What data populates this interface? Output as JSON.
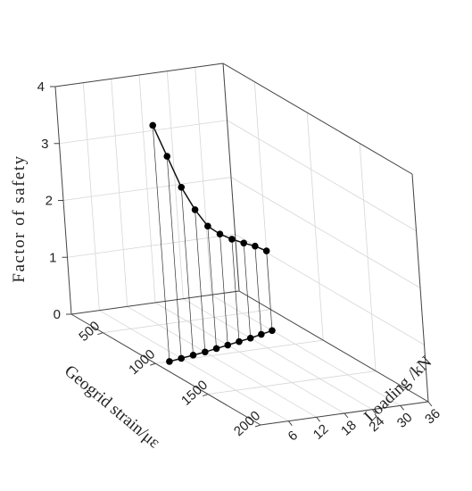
{
  "chart_data": {
    "type": "line3d",
    "title": "",
    "xlabel": "Geogrid strain/με",
    "ylabel": "Loading /kN",
    "zlabel": "Factor of safety",
    "x_ticks": [
      "500",
      "1000",
      "1500",
      "2000"
    ],
    "y_ticks": [
      "6",
      "12",
      "18",
      "24",
      "30",
      "36"
    ],
    "z_ticks": [
      "0",
      "1",
      "2",
      "3",
      "4"
    ],
    "xlim": [
      200,
      2000
    ],
    "ylim": [
      0,
      36
    ],
    "zlim": [
      0,
      4
    ],
    "grid": true,
    "series": [
      {
        "loading": [
          3,
          6,
          9,
          12,
          15,
          18,
          21,
          24,
          27,
          30
        ],
        "strain": [
          1000,
          980,
          960,
          940,
          915,
          890,
          865,
          840,
          810,
          780
        ],
        "factor_of_safety": [
          4.15,
          3.55,
          2.95,
          2.5,
          2.15,
          1.95,
          1.8,
          1.67,
          1.55,
          1.4
        ]
      }
    ]
  }
}
